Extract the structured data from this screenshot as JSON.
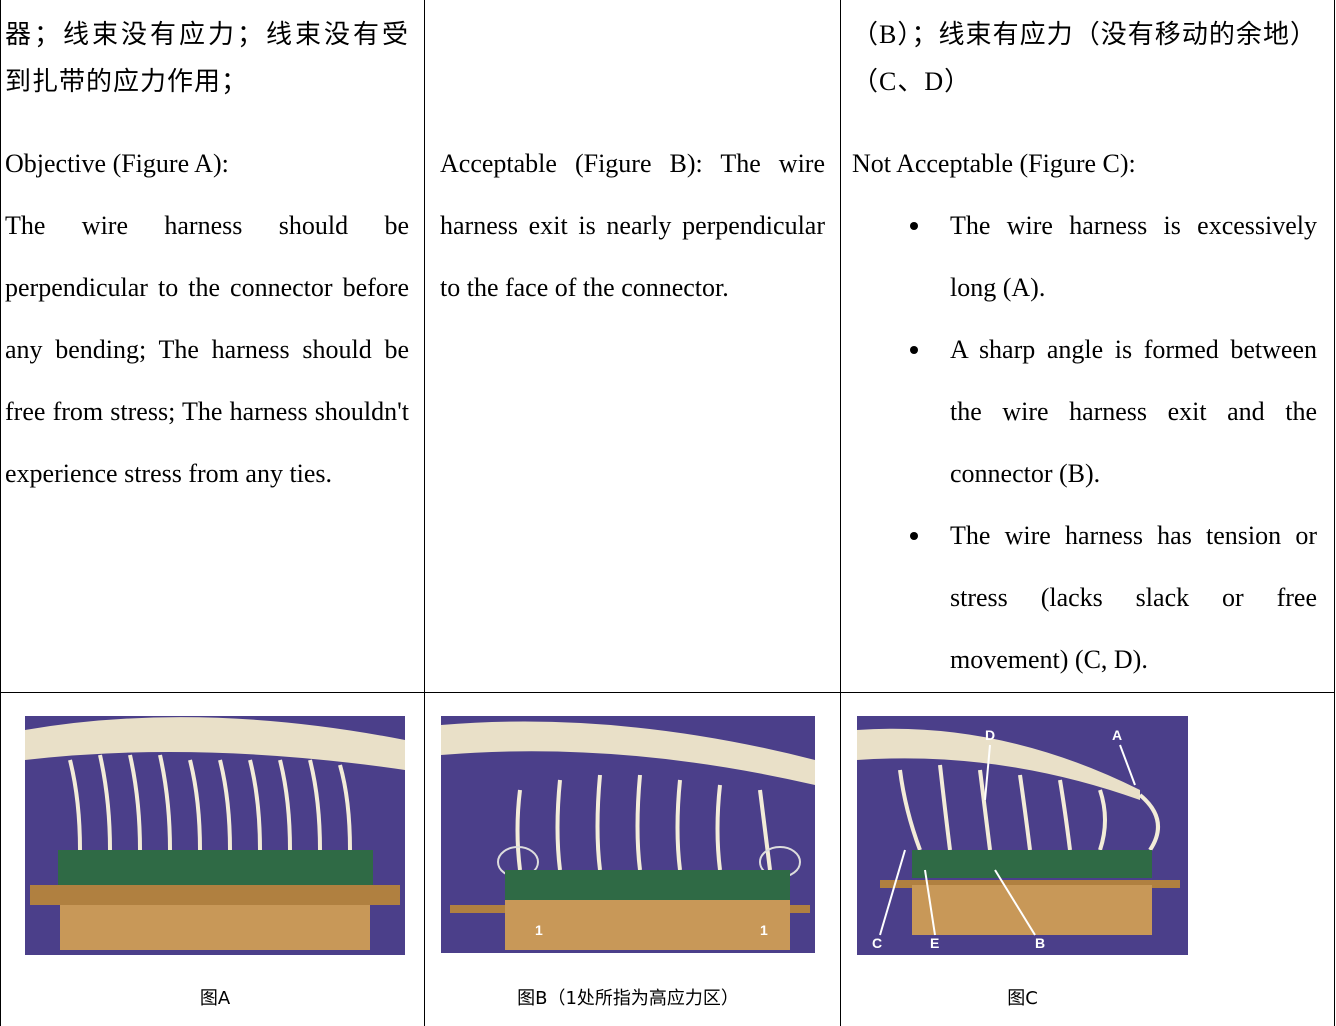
{
  "table": {
    "rows": [
      {
        "cells": [
          {
            "zh": "器；线束没有应力；线束没有受到扎带的应力作用；",
            "heading": "Objective (Figure A):",
            "text": "The wire harness should be perpendicular to the connector before any bending; The harness should be free from stress; The harness shouldn't experience stress from any ties."
          },
          {
            "heading": "Acceptable (Figure B):",
            "text": "The wire harness exit is nearly perpendicular to the face of the connector."
          },
          {
            "zh": "（B）；线束有应力（没有移动的余地）（C、D）",
            "heading": "Not Acceptable (Figure C):",
            "bullets": [
              "The wire harness is excessively long (A).",
              "A sharp angle is formed between the wire harness exit and the connector (B).",
              "The wire harness has tension or stress (lacks slack or free movement) (C, D)."
            ]
          }
        ]
      },
      {
        "cells": [
          {
            "caption": "图A"
          },
          {
            "caption": "图B（1处所指为高应力区）",
            "image_labels": [
              "1",
              "1"
            ]
          },
          {
            "caption": "图C",
            "image_labels": [
              "D",
              "A",
              "C",
              "E",
              "B"
            ]
          }
        ]
      }
    ]
  }
}
